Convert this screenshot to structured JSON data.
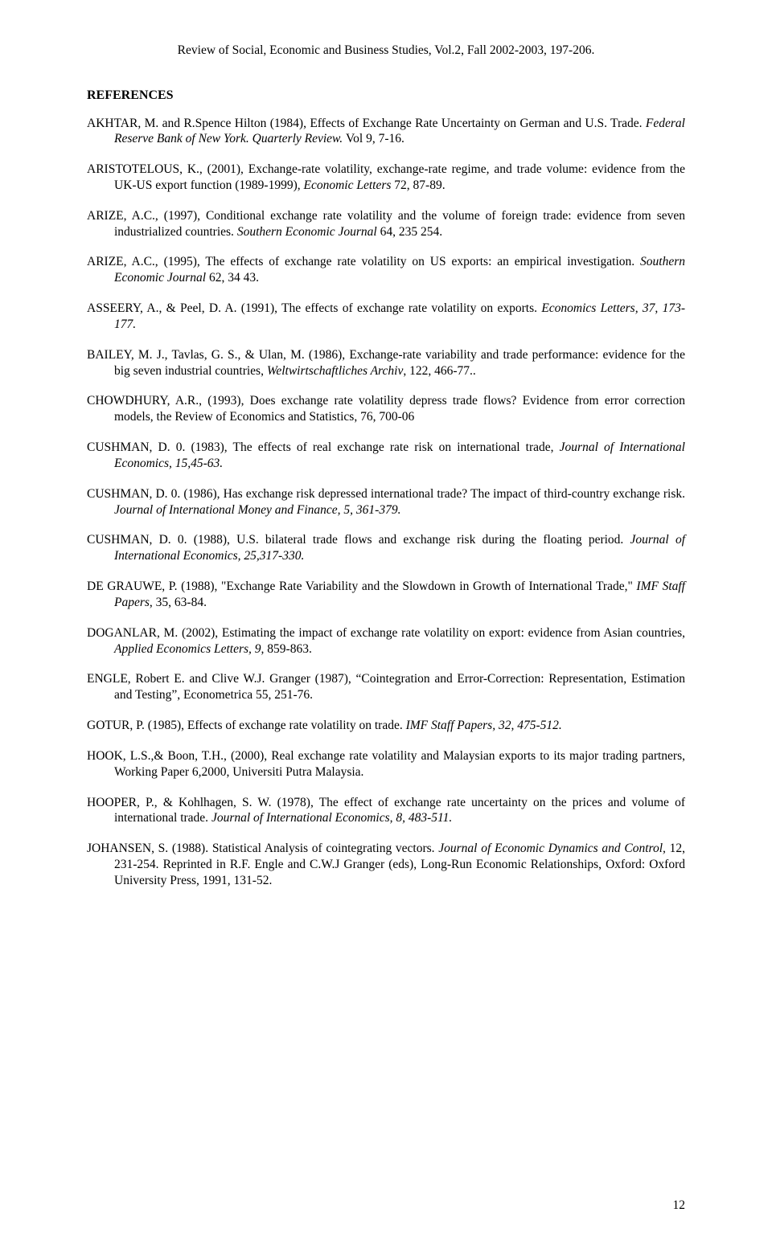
{
  "running_head": "Review of Social, Economic and Business Studies, Vol.2, Fall 2002-2003, 197-206.",
  "section_heading": "REFERENCES",
  "page_number": "12",
  "refs": [
    {
      "segments": [
        {
          "t": "AKHTAR, M. and R.Spence Hilton (1984), Effects of Exchange Rate Uncertainty on German and U.S. Trade. "
        },
        {
          "t": "Federal Reserve Bank of New York. Quarterly Review. ",
          "i": true
        },
        {
          "t": "Vol 9, 7-16."
        }
      ]
    },
    {
      "segments": [
        {
          "t": "ARISTOTELOUS, K., (2001), Exchange-rate volatility, exchange-rate regime, and trade volume: evidence from the UK-US export function (1989-1999), "
        },
        {
          "t": "Economic Letters",
          "i": true
        },
        {
          "t": " 72, 87-89."
        }
      ]
    },
    {
      "segments": [
        {
          "t": "ARIZE, A.C., (1997), Conditional exchange rate volatility and the volume of foreign trade: evidence from seven industrialized countries. "
        },
        {
          "t": "Southern Economic Journal",
          "i": true
        },
        {
          "t": " 64, 235 254."
        }
      ]
    },
    {
      "segments": [
        {
          "t": "ARIZE, A.C., (1995), The effects of exchange rate volatility on US exports: an empirical investigation. "
        },
        {
          "t": "Southern Economic Journal",
          "i": true
        },
        {
          "t": " 62, 34 43."
        }
      ]
    },
    {
      "segments": [
        {
          "t": "ASSEERY, A., & Peel, D. A. (1991), The effects of exchange rate volatility on exports. "
        },
        {
          "t": "Economics Letters, 37, 173-177.",
          "i": true
        }
      ]
    },
    {
      "segments": [
        {
          "t": "BAILEY, M. J., Tavlas, G. S., & Ulan, M. (1986), Exchange-rate variability and trade performance: evidence for the big seven industrial countries, "
        },
        {
          "t": "Weltwirtschaftliches Archiv",
          "i": true
        },
        {
          "t": ", 122, 466-77.."
        }
      ]
    },
    {
      "segments": [
        {
          "t": "CHOWDHURY, A.R., (1993), Does exchange rate volatility depress trade flows? Evidence from error correction models, the Review of Economics and Statistics, 76, 700-06"
        }
      ]
    },
    {
      "segments": [
        {
          "t": "CUSHMAN, D. 0. (1983), The effects of real exchange rate risk on international trade, "
        },
        {
          "t": "Journal of International Economics, 15,45-63.",
          "i": true
        }
      ]
    },
    {
      "segments": [
        {
          "t": "CUSHMAN, D. 0. (1986), Has exchange risk depressed international trade? The impact of third-country exchange risk. "
        },
        {
          "t": "Journal of International Money and Finance, 5, 361-379.",
          "i": true
        }
      ]
    },
    {
      "segments": [
        {
          "t": "CUSHMAN, D. 0. (1988), U.S. bilateral trade flows and exchange risk during the floating period. "
        },
        {
          "t": "Journal of International Economics, 25,317-330.",
          "i": true
        }
      ]
    },
    {
      "segments": [
        {
          "t": "DE GRAUWE, P. (1988), \"Exchange Rate Variability and the Slowdown in Growth of International Trade,\" "
        },
        {
          "t": "IMF Staff Papers",
          "i": true
        },
        {
          "t": ", 35, 63-84."
        }
      ]
    },
    {
      "segments": [
        {
          "t": "DOGANLAR, M. (2002), Estimating the impact of exchange rate volatility on export: evidence from Asian countries, "
        },
        {
          "t": "Applied Economics Letters, 9,",
          "i": true
        },
        {
          "t": " 859-863."
        }
      ]
    },
    {
      "segments": [
        {
          "t": "ENGLE, Robert E. and Clive W.J. Granger (1987), “Cointegration and Error-Correction: Representation, Estimation and Testing”, Econometrica 55, 251-76."
        }
      ]
    },
    {
      "segments": [
        {
          "t": "GOTUR, P. (1985), Effects of exchange rate volatility on trade. "
        },
        {
          "t": "IMF Staff Papers, 32, 475-512.",
          "i": true
        }
      ]
    },
    {
      "segments": [
        {
          "t": "HOOK, L.S.,& Boon, T.H., (2000), Real exchange rate volatility and Malaysian exports to its major trading partners, Working Paper 6,2000, Universiti Putra Malaysia."
        }
      ]
    },
    {
      "segments": [
        {
          "t": "HOOPER, P., & Kohlhagen, S. W. (1978), The effect of exchange rate uncertainty on the prices and volume of international trade. "
        },
        {
          "t": "Journal of International Economics, 8, 483-511.",
          "i": true
        }
      ]
    },
    {
      "segments": [
        {
          "t": "JOHANSEN, S. (1988).  Statistical Analysis of cointegrating vectors. "
        },
        {
          "t": "Journal of Economic Dynamics and Control,",
          "i": true
        },
        {
          "t": " 12, 231-254.  Reprinted in R.F. Engle and C.W.J Granger (eds), Long-Run Economic Relationships, Oxford: Oxford University Press, 1991, 131-52."
        }
      ]
    }
  ]
}
